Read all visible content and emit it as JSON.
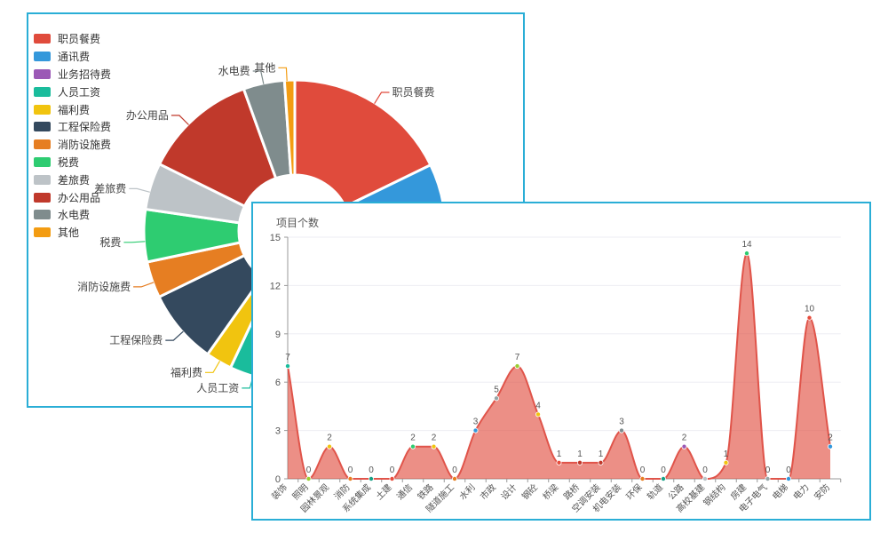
{
  "ui": {
    "background_color": "#ffffff",
    "panel_border_color": "#2aaed6",
    "text_color": "#555555"
  },
  "chart_data": [
    {
      "type": "pie",
      "subtype": "donut",
      "legend_position": "top-left-vertical",
      "label_text_color": "#444444",
      "slices": [
        {
          "name": "职员餐费",
          "value": 17.8,
          "color": "#e04b3c",
          "label_angle": 32,
          "label_visible": true
        },
        {
          "name": "通讯费",
          "value": 8.9,
          "color": "#3498db",
          "label_angle": 80,
          "label_visible": false
        },
        {
          "name": "业务招待费",
          "value": 6.7,
          "color": "#9b59b6",
          "label_angle": 108,
          "label_visible": false
        },
        {
          "name": "人员工资",
          "value": 23.6,
          "color": "#1abc9c",
          "label_angle": 196,
          "label_visible": true
        },
        {
          "name": "福利费",
          "value": 2.8,
          "color": "#f1c40f",
          "label_angle": 210,
          "label_visible": true
        },
        {
          "name": "工程保险费",
          "value": 8.0,
          "color": "#34495e",
          "label_angle": 228,
          "label_visible": true
        },
        {
          "name": "消防设施费",
          "value": 3.9,
          "color": "#e67e22",
          "label_angle": 250,
          "label_visible": true
        },
        {
          "name": "税费",
          "value": 5.6,
          "color": "#2ecc71",
          "label_angle": 266,
          "label_visible": true
        },
        {
          "name": "差旅费",
          "value": 5.0,
          "color": "#bdc3c7",
          "label_angle": 285,
          "label_visible": true
        },
        {
          "name": "办公用品",
          "value": 12.2,
          "color": "#c0392b",
          "label_angle": 315,
          "label_visible": true
        },
        {
          "name": "水电费",
          "value": 4.4,
          "color": "#7f8c8d",
          "label_angle": 348,
          "label_visible": true
        },
        {
          "name": "其他",
          "value": 1.1,
          "color": "#f39c12",
          "label_angle": 357,
          "label_visible": true
        }
      ]
    },
    {
      "type": "area",
      "title": "项目个数",
      "categories": [
        "装饰",
        "照明",
        "园林景观",
        "消防",
        "系统集成",
        "土建",
        "通信",
        "铁路",
        "隧道施工",
        "水利",
        "市政",
        "设计",
        "钢砼",
        "桥梁",
        "路桥",
        "空调安装",
        "机电安装",
        "环保",
        "轨道",
        "公路",
        "高校基建",
        "钢结构",
        "房建",
        "电子电气",
        "电梯",
        "电力",
        "安防"
      ],
      "values": [
        7,
        0,
        2,
        0,
        0,
        0,
        2,
        2,
        0,
        3,
        5,
        7,
        4,
        1,
        1,
        1,
        3,
        0,
        0,
        2,
        0,
        1,
        14,
        0,
        0,
        10,
        2
      ],
      "point_colors": [
        "#1abc9c",
        "#9acd32",
        "#f1c40f",
        "#e67e22",
        "#16a085",
        "#e74c3c",
        "#2ecc71",
        "#f1c40f",
        "#e67e22",
        "#3498db",
        "#95a5a6",
        "#9acd32",
        "#f1c40f",
        "#e74c3c",
        "#c0392b",
        "#c0392b",
        "#7f8c8d",
        "#e67e22",
        "#16a085",
        "#9b59b6",
        "#bdc3c7",
        "#f1c40f",
        "#2ecc71",
        "#95a5a6",
        "#3498db",
        "#e74c3c",
        "#3498db"
      ],
      "yticks": [
        0,
        3,
        6,
        9,
        12,
        15
      ],
      "ylim": [
        0,
        15
      ],
      "grid": true,
      "smooth": true,
      "line_color": "#e0544a",
      "fill_color": "rgba(224,75,60,0.62)",
      "axis_color": "#999999",
      "grid_color": "#ededf3",
      "axis_label_color": "#555555",
      "value_label_color": "#555555"
    }
  ]
}
